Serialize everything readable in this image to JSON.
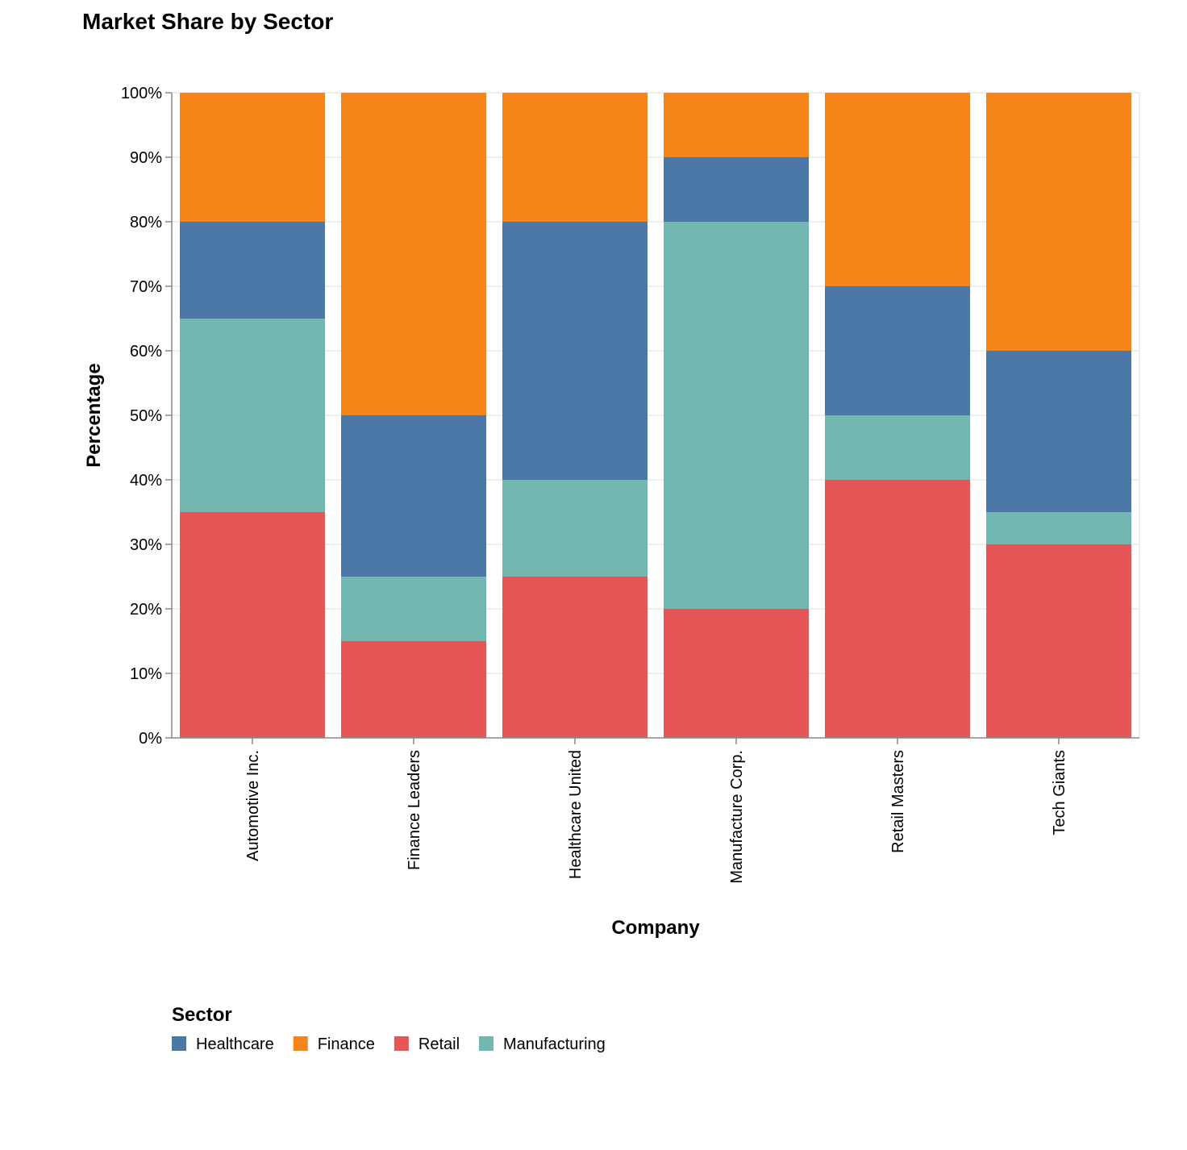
{
  "chart_data": {
    "type": "bar",
    "stacked": true,
    "title": "Market Share by Sector",
    "xlabel": "Company",
    "ylabel": "Percentage",
    "ylim": [
      0,
      100
    ],
    "yticks": [
      0,
      10,
      20,
      30,
      40,
      50,
      60,
      70,
      80,
      90,
      100
    ],
    "ytick_format": "%",
    "grid": true,
    "legend_title": "Sector",
    "legend_position": "bottom-left",
    "categories": [
      "Automotive Inc.",
      "Finance Leaders",
      "Healthcare United",
      "Manufacture Corp.",
      "Retail Masters",
      "Tech Giants"
    ],
    "stack_order": [
      "Retail",
      "Manufacturing",
      "Healthcare",
      "Finance"
    ],
    "legend_order": [
      "Healthcare",
      "Finance",
      "Retail",
      "Manufacturing"
    ],
    "series": [
      {
        "name": "Healthcare",
        "color": "#4c78a8",
        "values": [
          15,
          25,
          40,
          10,
          20,
          25
        ]
      },
      {
        "name": "Finance",
        "color": "#f58518",
        "values": [
          20,
          50,
          20,
          10,
          30,
          40
        ]
      },
      {
        "name": "Retail",
        "color": "#e45756",
        "values": [
          35,
          15,
          25,
          20,
          40,
          30
        ]
      },
      {
        "name": "Manufacturing",
        "color": "#72b7b2",
        "values": [
          30,
          10,
          15,
          60,
          10,
          5
        ]
      }
    ]
  }
}
